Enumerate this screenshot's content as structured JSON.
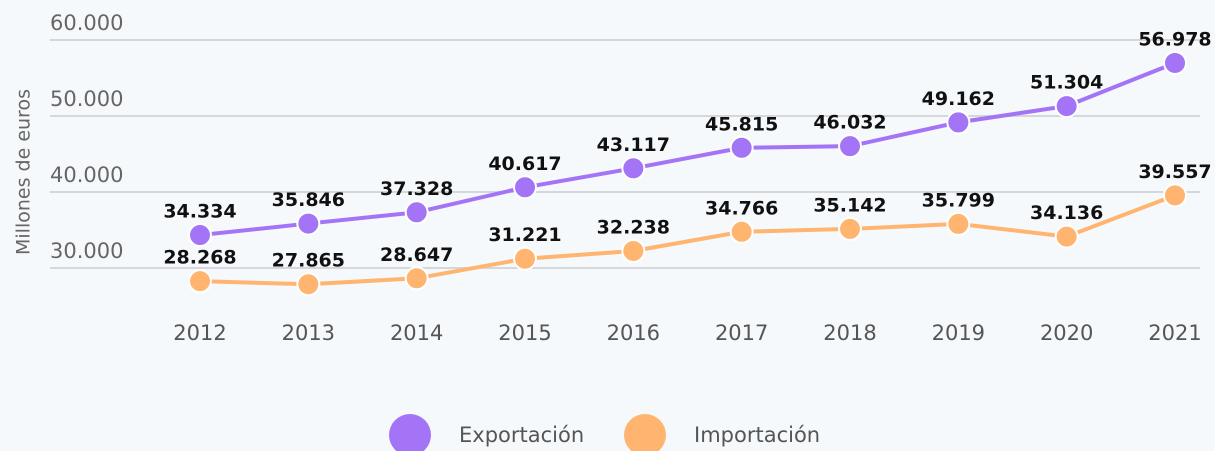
{
  "chart_data": {
    "type": "line",
    "y_label": "Millones de euros",
    "categories": [
      "2012",
      "2013",
      "2014",
      "2015",
      "2016",
      "2017",
      "2018",
      "2019",
      "2020",
      "2021"
    ],
    "series": [
      {
        "name": "Exportación",
        "color": "#a374f5",
        "values": [
          34334,
          35846,
          37328,
          40617,
          43117,
          45815,
          46032,
          49162,
          51304,
          56978
        ],
        "value_labels": [
          "34.334",
          "35.846",
          "37.328",
          "40.617",
          "43.117",
          "45.815",
          "46.032",
          "49.162",
          "51.304",
          "56.978"
        ]
      },
      {
        "name": "Importación",
        "color": "#ffb570",
        "values": [
          28268,
          27865,
          28647,
          31221,
          32238,
          34766,
          35142,
          35799,
          34136,
          39557
        ],
        "value_labels": [
          "28.268",
          "27.865",
          "28.647",
          "31.221",
          "32.238",
          "34.766",
          "35.142",
          "35.799",
          "34.136",
          "39.557"
        ]
      }
    ],
    "ylim": [
      26000,
      60000
    ],
    "yticks": [
      {
        "value": 30000,
        "label": "30.000"
      },
      {
        "value": 40000,
        "label": "40.000"
      },
      {
        "value": 50000,
        "label": "50.000"
      },
      {
        "value": 60000,
        "label": "60.000"
      }
    ],
    "grid": true,
    "legend": "bottom"
  }
}
